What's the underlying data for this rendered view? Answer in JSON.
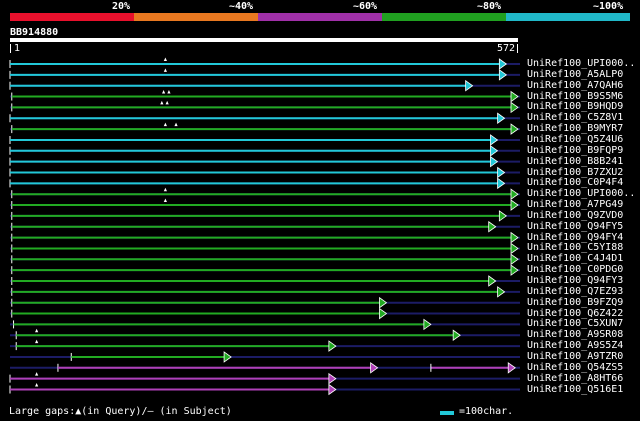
{
  "query": {
    "id": "BB914880",
    "length": 572,
    "ruler_start": "1",
    "ruler_end": "572"
  },
  "scale": {
    "labels": [
      "20%",
      "~40%",
      "~60%",
      "~80%",
      "~100%"
    ],
    "colors": [
      "#e8102c",
      "#e87820",
      "#a030a8",
      "#20a020",
      "#20b8c8"
    ]
  },
  "colors": {
    "cyan": "#22c8d8",
    "green": "#22aa22",
    "magenta": "#b040b8",
    "navy": "#1c1c66",
    "marker": "#ffffff"
  },
  "hits": [
    {
      "name": "UniRef100_UPI000..",
      "color": "cyan",
      "start": 1,
      "end": 560,
      "gaps": [
        176
      ]
    },
    {
      "name": "UniRef100_A5ALP0",
      "color": "cyan",
      "start": 1,
      "end": 560,
      "gaps": [
        176
      ]
    },
    {
      "name": "UniRef100_A7QAH6",
      "color": "cyan",
      "start": 1,
      "end": 522,
      "gaps": []
    },
    {
      "name": "UniRef100_B9S5M6",
      "color": "green",
      "start": 3,
      "end": 580,
      "gaps": [
        174,
        180
      ]
    },
    {
      "name": "UniRef100_B9HQD9",
      "color": "green",
      "start": 3,
      "end": 580,
      "gaps": [
        172,
        178
      ]
    },
    {
      "name": "UniRef100_C5Z8V1",
      "color": "cyan",
      "start": 1,
      "end": 558,
      "gaps": []
    },
    {
      "name": "UniRef100_B9MYR7",
      "color": "green",
      "start": 3,
      "end": 580,
      "gaps": [
        176,
        188
      ]
    },
    {
      "name": "UniRef100_Q5Z4U6",
      "color": "cyan",
      "start": 1,
      "end": 550,
      "gaps": []
    },
    {
      "name": "UniRef100_B9FQP9",
      "color": "cyan",
      "start": 1,
      "end": 550,
      "gaps": []
    },
    {
      "name": "UniRef100_B8B241",
      "color": "cyan",
      "start": 1,
      "end": 550,
      "gaps": []
    },
    {
      "name": "UniRef100_B7ZXU2",
      "color": "cyan",
      "start": 1,
      "end": 558,
      "gaps": []
    },
    {
      "name": "UniRef100_C0P4F4",
      "color": "cyan",
      "start": 1,
      "end": 558,
      "gaps": []
    },
    {
      "name": "UniRef100_UPI000..",
      "color": "green",
      "start": 3,
      "end": 580,
      "gaps": [
        176
      ]
    },
    {
      "name": "UniRef100_A7PG49",
      "color": "green",
      "start": 3,
      "end": 580,
      "gaps": [
        176
      ]
    },
    {
      "name": "UniRef100_Q9ZVD0",
      "color": "green",
      "start": 3,
      "end": 560,
      "gaps": []
    },
    {
      "name": "UniRef100_Q94FY5",
      "color": "green",
      "start": 3,
      "end": 548,
      "gaps": []
    },
    {
      "name": "UniRef100_Q94FY4",
      "color": "green",
      "start": 3,
      "end": 580,
      "gaps": []
    },
    {
      "name": "UniRef100_C5YI88",
      "color": "green",
      "start": 3,
      "end": 580,
      "gaps": []
    },
    {
      "name": "UniRef100_C4J4D1",
      "color": "green",
      "start": 3,
      "end": 580,
      "gaps": []
    },
    {
      "name": "UniRef100_C0PDG0",
      "color": "green",
      "start": 3,
      "end": 580,
      "gaps": []
    },
    {
      "name": "UniRef100_Q94FY3",
      "color": "green",
      "start": 3,
      "end": 548,
      "gaps": []
    },
    {
      "name": "UniRef100_Q7EZ93",
      "color": "green",
      "start": 3,
      "end": 558,
      "gaps": []
    },
    {
      "name": "UniRef100_B9FZQ9",
      "color": "green",
      "start": 3,
      "end": 425,
      "gaps": []
    },
    {
      "name": "UniRef100_Q6Z422",
      "color": "green",
      "start": 3,
      "end": 425,
      "gaps": []
    },
    {
      "name": "UniRef100_C5XUN7",
      "color": "green",
      "start": 5,
      "end": 475,
      "gaps": []
    },
    {
      "name": "UniRef100_A9SR08",
      "color": "green",
      "start": 8,
      "end": 508,
      "gaps": [
        31
      ]
    },
    {
      "name": "UniRef100_A9S5Z4",
      "color": "green",
      "start": 8,
      "end": 368,
      "gaps": [
        31
      ]
    },
    {
      "name": "UniRef100_A9TZR0",
      "color": "green",
      "start": 70,
      "end": 250,
      "gaps": []
    },
    {
      "name": "UniRef100_Q54ZS5",
      "color": "magenta",
      "start": 55,
      "end": 415,
      "gaps": [],
      "second": [
        475,
        570
      ]
    },
    {
      "name": "UniRef100_A8HT66",
      "color": "magenta",
      "start": 1,
      "end": 368,
      "gaps": [
        31
      ]
    },
    {
      "name": "UniRef100_Q516E1",
      "color": "magenta",
      "start": 1,
      "end": 368,
      "gaps": [
        31
      ]
    }
  ],
  "legend": {
    "text": "Large gaps:▲(in Query)/– (in Subject)",
    "unit": "=100char."
  }
}
